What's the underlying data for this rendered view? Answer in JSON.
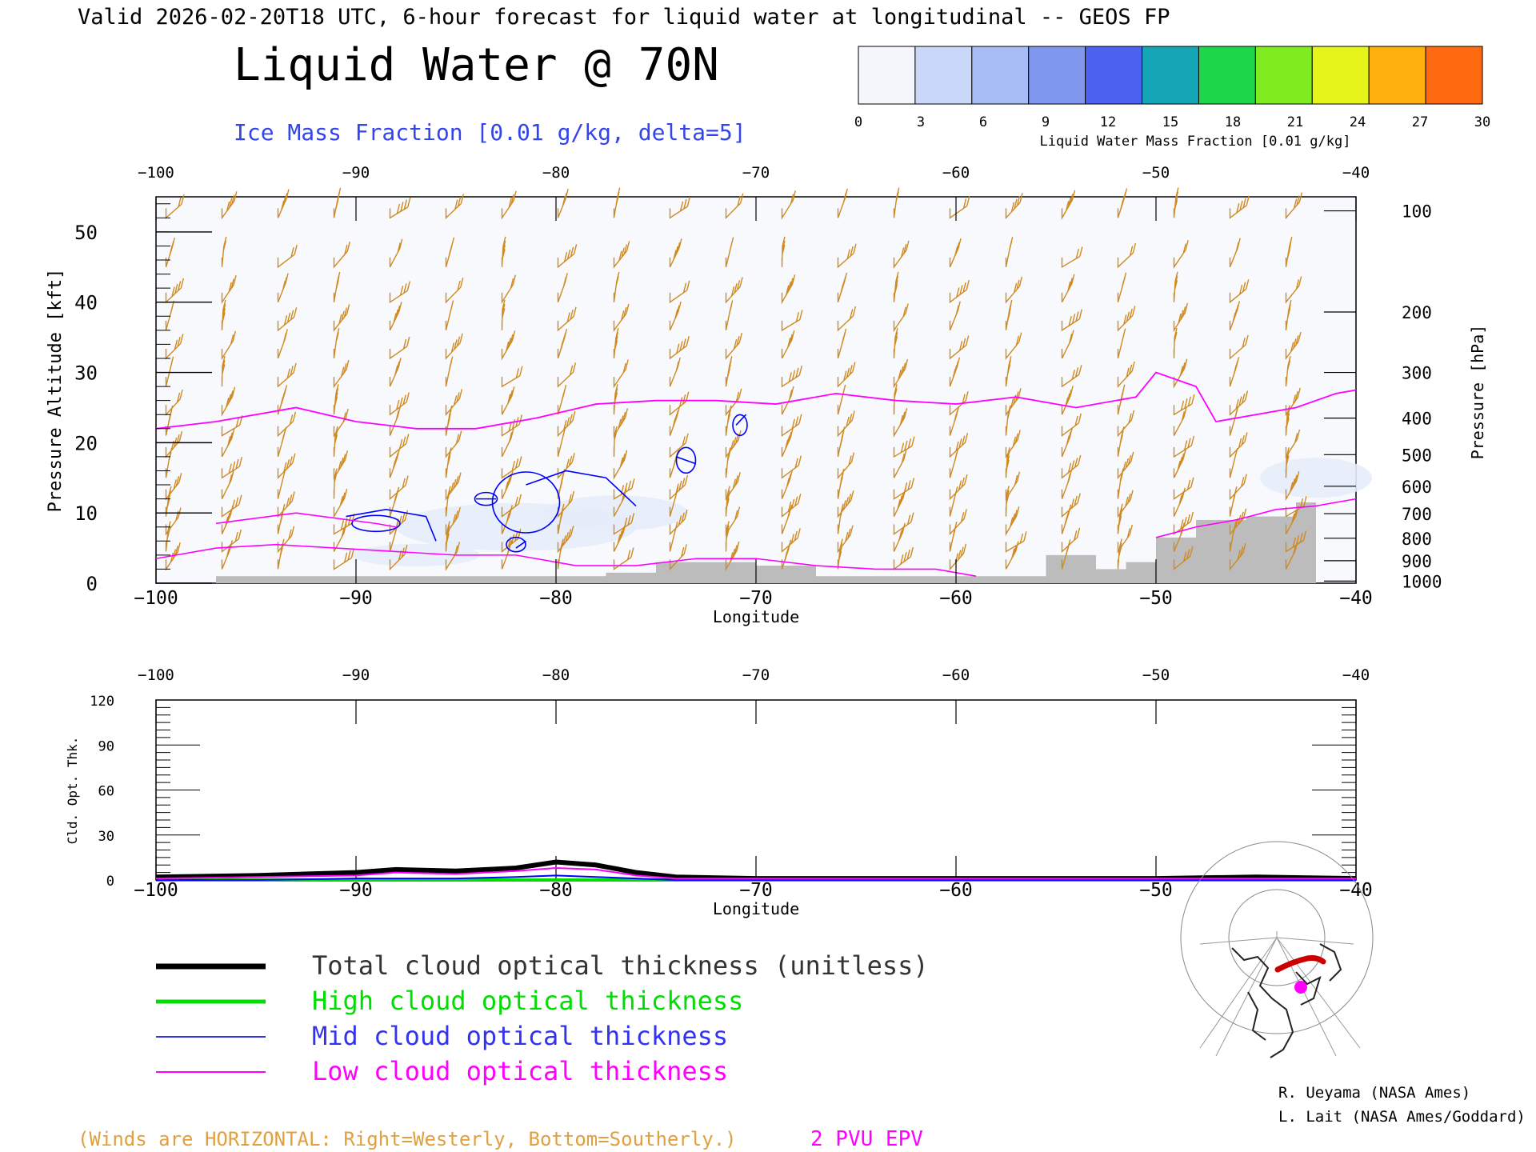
{
  "header": {
    "valid_line": "Valid 2026-02-20T18 UTC, 6-hour forecast for liquid water at longitudinal -- GEOS FP",
    "title": "Liquid Water @ 70N",
    "subtitle": "Ice Mass Fraction [0.01 g/kg, delta=5]"
  },
  "colorbar": {
    "label": "Liquid Water Mass Fraction [0.01 g/kg]",
    "ticks": [
      "0",
      "3",
      "6",
      "9",
      "12",
      "15",
      "18",
      "21",
      "24",
      "27",
      "30"
    ],
    "colors": [
      "#f4f6fc",
      "#c9d8f8",
      "#a7bcf4",
      "#7f97ee",
      "#4b63f0",
      "#14a6b6",
      "#1ed64a",
      "#7eec1e",
      "#e6f41a",
      "#ffb00c",
      "#ff6a10"
    ]
  },
  "chart_data": [
    {
      "type": "heatmap",
      "title": "Liquid Water @ 70N",
      "xlabel": "Longitude",
      "ylabel_left": "Pressure Altitude [kft]",
      "ylabel_right": "Pressure [hPa]",
      "x_ticks": [
        "−100",
        "−90",
        "−80",
        "−70",
        "−60",
        "−50",
        "−40"
      ],
      "xlim": [
        -100,
        -40
      ],
      "y_left_ticks": [
        0,
        10,
        20,
        30,
        40,
        50
      ],
      "ylim": [
        0,
        55
      ],
      "y_right_ticks": [
        {
          "label": "100",
          "kft": 53
        },
        {
          "label": "200",
          "kft": 38.6
        },
        {
          "label": "300",
          "kft": 30
        },
        {
          "label": "400",
          "kft": 23.5
        },
        {
          "label": "500",
          "kft": 18.3
        },
        {
          "label": "600",
          "kft": 13.8
        },
        {
          "label": "700",
          "kft": 9.9
        },
        {
          "label": "800",
          "kft": 6.4
        },
        {
          "label": "900",
          "kft": 3.2
        },
        {
          "label": "1000",
          "kft": 0.3
        }
      ],
      "epv_2pvu_line": {
        "color": "#ff00ff",
        "lon": [
          -100,
          -97,
          -93,
          -90,
          -87,
          -84,
          -81,
          -78,
          -75,
          -72,
          -69,
          -66,
          -63,
          -60,
          -57,
          -54,
          -51,
          -50,
          -48,
          -47,
          -45,
          -43,
          -41,
          -40
        ],
        "kft": [
          22,
          23,
          25,
          23,
          22,
          22,
          23.5,
          25.5,
          26,
          26,
          25.5,
          27,
          26,
          25.5,
          26.5,
          25,
          26.5,
          30,
          28,
          23,
          24,
          25,
          27,
          27.5
        ]
      },
      "low_contours": {
        "color": "#ff00ff",
        "lines": [
          {
            "lon": [
              -100,
              -97,
              -94,
              -91,
              -88,
              -85,
              -82,
              -79,
              -76,
              -73,
              -70,
              -67,
              -64,
              -61,
              -59
            ],
            "kft": [
              3.5,
              5,
              5.5,
              5,
              4.5,
              4,
              4,
              2.5,
              2.5,
              3.5,
              3.5,
              2.5,
              2,
              2,
              1
            ]
          },
          {
            "lon": [
              -97,
              -93,
              -89,
              -88
            ],
            "kft": [
              8.5,
              10,
              8.5,
              8
            ]
          },
          {
            "lon": [
              -50,
              -48,
              -46,
              -44,
              -42,
              -40
            ],
            "kft": [
              6.5,
              8,
              9,
              10.5,
              11,
              12
            ]
          }
        ]
      },
      "ice_contours": {
        "color": "#0000ff",
        "lines": [
          {
            "lon": [
              -90.5,
              -88.5,
              -86.5,
              -86
            ],
            "kft": [
              9.5,
              10.5,
              9.5,
              6
            ]
          },
          {
            "lon": [
              -81.5,
              -79.5,
              -77.5,
              -76
            ],
            "kft": [
              14,
              16,
              15,
              11
            ]
          },
          {
            "lon": [
              -84,
              -83
            ],
            "kft": [
              12,
              12
            ]
          },
          {
            "lon": [
              -82,
              -81.5
            ],
            "kft": [
              5,
              6
            ]
          },
          {
            "lon": [
              -74,
              -73
            ],
            "kft": [
              18,
              17
            ]
          },
          {
            "lon": [
              -71,
              -70.5
            ],
            "kft": [
              22.5,
              24
            ]
          }
        ]
      },
      "terrain": {
        "color": "#bcbcbc",
        "lon": [
          -97,
          -92,
          -84,
          -77.5,
          -75,
          -70,
          -67,
          -55.5,
          -53,
          -51.5,
          -50,
          -48,
          -45.5,
          -43,
          -42
        ],
        "kft": [
          1,
          1,
          1,
          1.5,
          3,
          2.5,
          1,
          4,
          2,
          3,
          6.5,
          9,
          9.5,
          11.5,
          11.5
        ]
      }
    },
    {
      "type": "line",
      "ylabel": "Cld. Opt. Thk.",
      "xlabel": "Longitude",
      "x_ticks": [
        "−100",
        "−90",
        "−80",
        "−70",
        "−60",
        "−50",
        "−40"
      ],
      "xlim": [
        -100,
        -40
      ],
      "ylim": [
        0,
        120
      ],
      "y_ticks": [
        "0",
        "30",
        "60",
        "90",
        "120"
      ],
      "x": [
        -100,
        -95,
        -90,
        -88,
        -85,
        -82,
        -80,
        -78,
        -76,
        -74,
        -70,
        -60,
        -50,
        -45,
        -40
      ],
      "series": [
        {
          "name": "Total cloud optical thickness (unitless)",
          "color": "#000000",
          "values": [
            2,
            3,
            5,
            7,
            6,
            8,
            12,
            10,
            5,
            2,
            1,
            1,
            1,
            2,
            1
          ]
        },
        {
          "name": "High cloud optical thickness",
          "color": "#00dd00",
          "values": [
            0,
            0,
            0,
            0,
            0,
            0,
            0,
            0,
            0,
            0,
            0,
            0,
            0,
            0,
            0
          ]
        },
        {
          "name": "Mid cloud optical thickness",
          "color": "#0000ff",
          "values": [
            0,
            0,
            1,
            1,
            1,
            2,
            3,
            2,
            1,
            0,
            0,
            0,
            0,
            0,
            0
          ]
        },
        {
          "name": "Low cloud optical thickness",
          "color": "#ff00ff",
          "values": [
            1,
            2,
            3,
            5,
            4,
            6,
            8,
            7,
            3,
            1,
            1,
            1,
            1,
            1,
            1
          ]
        }
      ]
    }
  ],
  "legend": [
    {
      "label": "Total cloud optical thickness (unitless)",
      "color": "#000000"
    },
    {
      "label": "High cloud optical thickness",
      "color": "#00dd00"
    },
    {
      "label": "Mid cloud optical thickness",
      "color": "#3333ee"
    },
    {
      "label": "Low cloud optical thickness",
      "color": "#ff00ff"
    }
  ],
  "winds_note": "(Winds are HORIZONTAL: Right=Westerly, Bottom=Southerly.)",
  "epv_label": "2 PVU EPV",
  "credits": [
    "R. Ueyama (NASA Ames)",
    "L. Lait (NASA Ames/Goddard)"
  ],
  "colors": {
    "wind_barb": "#d08a20",
    "epv": "#ff00ff",
    "terrain": "#bcbcbc",
    "ice": "#0000ff",
    "winds_note": "#e0a040",
    "marker": "#ff00ff",
    "track": "#cc0000"
  }
}
